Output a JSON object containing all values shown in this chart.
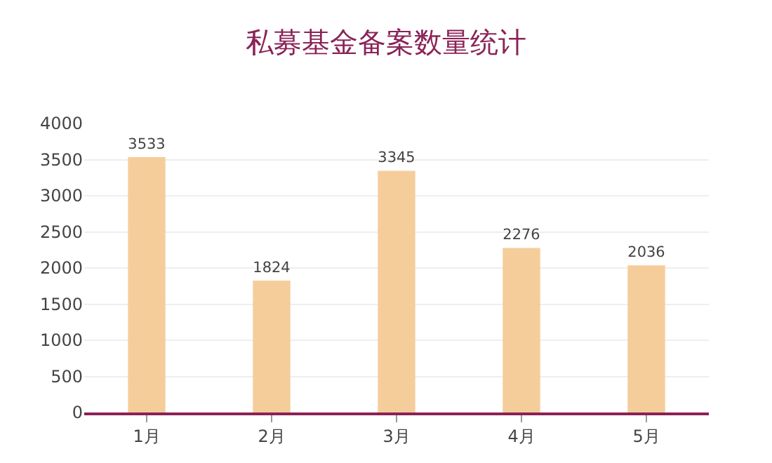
{
  "chart_data": {
    "type": "bar",
    "title": "私募基金备案数量统计",
    "categories": [
      "1月",
      "2月",
      "3月",
      "4月",
      "5月"
    ],
    "values": [
      3533,
      1824,
      3345,
      2276,
      2036
    ],
    "color": "#f5cd9b",
    "data_labels": true,
    "ylim": [
      0,
      4000
    ],
    "yticks": [
      0,
      500,
      1000,
      1500,
      2000,
      2500,
      3000,
      3500,
      4000
    ],
    "grid": "y"
  }
}
